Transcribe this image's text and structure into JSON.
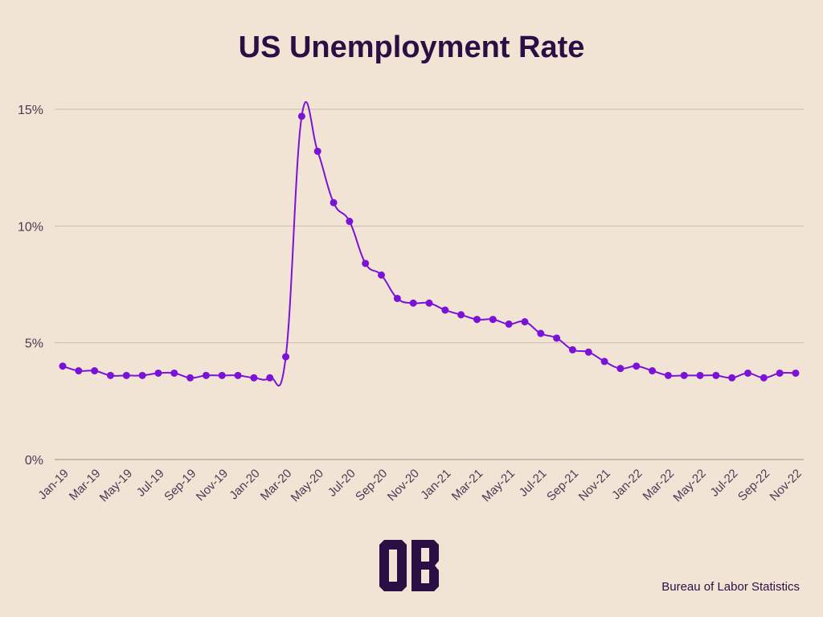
{
  "logo_text": "OB",
  "source": "Bureau of Labor Statistics",
  "colors": {
    "line": "#7a12d8",
    "title": "#2a0f45",
    "grid": "#c9bcae",
    "background": "#f2e4d4"
  },
  "chart_data": {
    "type": "line",
    "title": "US Unemployment Rate",
    "xlabel": "",
    "ylabel": "",
    "ylim": [
      0,
      15
    ],
    "yticks": [
      0,
      5,
      10,
      15
    ],
    "ytick_labels": [
      "0%",
      "5%",
      "10%",
      "15%"
    ],
    "grid": true,
    "x": [
      "Jan-19",
      "Feb-19",
      "Mar-19",
      "Apr-19",
      "May-19",
      "Jun-19",
      "Jul-19",
      "Aug-19",
      "Sep-19",
      "Oct-19",
      "Nov-19",
      "Dec-19",
      "Jan-20",
      "Feb-20",
      "Mar-20",
      "Apr-20",
      "May-20",
      "Jun-20",
      "Jul-20",
      "Aug-20",
      "Sep-20",
      "Oct-20",
      "Nov-20",
      "Dec-20",
      "Jan-21",
      "Feb-21",
      "Mar-21",
      "Apr-21",
      "May-21",
      "Jun-21",
      "Jul-21",
      "Aug-21",
      "Sep-21",
      "Oct-21",
      "Nov-21",
      "Dec-21",
      "Jan-22",
      "Feb-22",
      "Mar-22",
      "Apr-22",
      "May-22",
      "Jun-22",
      "Jul-22",
      "Aug-22",
      "Sep-22",
      "Oct-22",
      "Nov-22"
    ],
    "xtick_labels": [
      "Jan-19",
      "Mar-19",
      "May-19",
      "Jul-19",
      "Sep-19",
      "Nov-19",
      "Jan-20",
      "Mar-20",
      "May-20",
      "Jul-20",
      "Sep-20",
      "Nov-20",
      "Jan-21",
      "Mar-21",
      "May-21",
      "Jul-21",
      "Sep-21",
      "Nov-21",
      "Jan-22",
      "Mar-22",
      "May-22",
      "Jul-22",
      "Sep-22",
      "Nov-22"
    ],
    "series": [
      {
        "name": "Unemployment Rate",
        "values": [
          4.0,
          3.8,
          3.8,
          3.6,
          3.6,
          3.6,
          3.7,
          3.7,
          3.5,
          3.6,
          3.6,
          3.6,
          3.5,
          3.5,
          4.4,
          14.7,
          13.2,
          11.0,
          10.2,
          8.4,
          7.9,
          6.9,
          6.7,
          6.7,
          6.4,
          6.2,
          6.0,
          6.0,
          5.8,
          5.9,
          5.4,
          5.2,
          4.7,
          4.6,
          4.2,
          3.9,
          4.0,
          3.8,
          3.6,
          3.6,
          3.6,
          3.6,
          3.5,
          3.7,
          3.5,
          3.7,
          3.7
        ]
      }
    ]
  }
}
